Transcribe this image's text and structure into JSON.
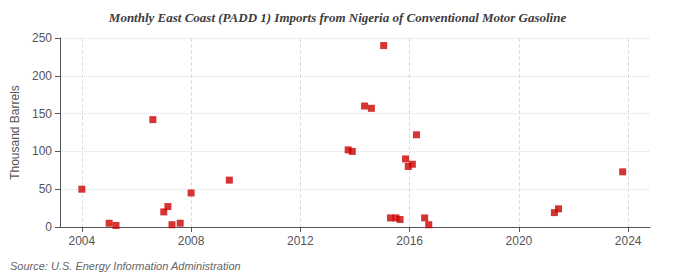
{
  "chart_data": {
    "type": "scatter",
    "title": "Monthly East Coast (PADD 1) Imports from Nigeria of Conventional Motor Gasoline",
    "ylabel": "Thousand Barrels",
    "annotations": [
      "Source: U.S. Energy Information Administration"
    ],
    "x": [
      2004.0,
      2005.0,
      2005.25,
      2006.6,
      2007.0,
      2007.15,
      2007.3,
      2007.6,
      2008.0,
      2009.4,
      2013.75,
      2013.9,
      2014.35,
      2014.6,
      2015.05,
      2015.3,
      2015.5,
      2015.65,
      2015.85,
      2015.95,
      2016.1,
      2016.25,
      2016.55,
      2016.7,
      2021.3,
      2021.45,
      2023.8
    ],
    "values": [
      50,
      5,
      2,
      142,
      20,
      27,
      3,
      5,
      45,
      62,
      102,
      100,
      160,
      157,
      240,
      12,
      12,
      10,
      90,
      80,
      83,
      122,
      12,
      3,
      19,
      24,
      73
    ],
    "color": "#cc0000",
    "marker": "square",
    "xlim": [
      2003.2,
      2024.8
    ],
    "xticks": [
      2004,
      2008,
      2012,
      2016,
      2020,
      2024
    ],
    "ylim": [
      0,
      250
    ],
    "yticks": [
      0,
      50,
      100,
      150,
      200,
      250
    ],
    "grid": true
  }
}
